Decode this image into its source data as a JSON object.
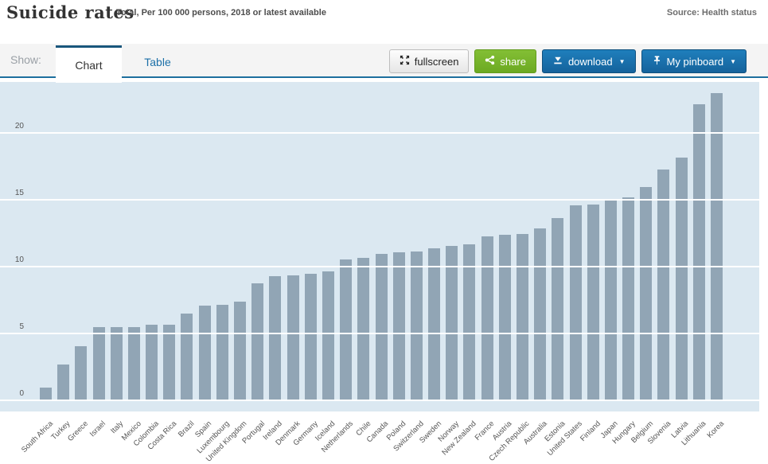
{
  "header": {
    "title": "Suicide rates",
    "subtitle": "Total, Per 100 000 persons, 2018 or latest available",
    "source": "Source: Health status"
  },
  "toolbar": {
    "show_label": "Show:",
    "tabs": [
      {
        "label": "Chart",
        "active": true
      },
      {
        "label": "Table",
        "active": false
      }
    ],
    "buttons": {
      "fullscreen": "fullscreen",
      "share": "share",
      "download": "download",
      "pinboard": "My pinboard",
      "dropdown_arrow": "▼"
    },
    "icons": [
      "fullscreen-expand-icon",
      "share-icon",
      "download-icon",
      "pushpin-icon"
    ]
  },
  "colors": {
    "accent_blue": "#1d6f9e",
    "button_blue": "#1a72ad",
    "button_green": "#76b42b",
    "bar_fill": "#91a5b5",
    "plot_background": "#dbe8f1",
    "gridline": "#ffffff",
    "tab_active_border": "#19567c",
    "table_tab_text": "#1c70a8"
  },
  "chart_data": {
    "type": "bar",
    "title": "Suicide rates",
    "subtitle": "Total, Per 100 000 persons, 2018 or latest available",
    "ylabel": "Per 100 000 persons",
    "xlabel": "",
    "ylim": [
      0,
      23.75
    ],
    "yticks": [
      0,
      5,
      10,
      15,
      20
    ],
    "grid": true,
    "legend": "none",
    "categories": [
      "South Africa",
      "Turkey",
      "Greece",
      "Israel",
      "Italy",
      "Mexico",
      "Colombia",
      "Costa Rica",
      "Brazil",
      "Spain",
      "Luxembourg",
      "United Kingdom",
      "Portugal",
      "Ireland",
      "Denmark",
      "Germany",
      "Iceland",
      "Netherlands",
      "Chile",
      "Canada",
      "Poland",
      "Switzerland",
      "Sweden",
      "Norway",
      "New Zealand",
      "France",
      "Austria",
      "Czech Republic",
      "Australia",
      "Estonia",
      "United States",
      "Finland",
      "Japan",
      "Hungary",
      "Belgium",
      "Slovenia",
      "Latvia",
      "Lithuania",
      "Korea"
    ],
    "values": [
      0.9,
      2.6,
      4.0,
      5.4,
      5.4,
      5.4,
      5.6,
      5.6,
      6.4,
      7.0,
      7.1,
      7.3,
      8.7,
      9.2,
      9.3,
      9.4,
      9.6,
      10.5,
      10.6,
      10.9,
      11.0,
      11.1,
      11.3,
      11.5,
      11.6,
      12.2,
      12.3,
      12.4,
      12.8,
      13.6,
      14.5,
      14.6,
      14.9,
      15.1,
      15.9,
      17.2,
      18.1,
      22.1,
      22.9
    ]
  }
}
